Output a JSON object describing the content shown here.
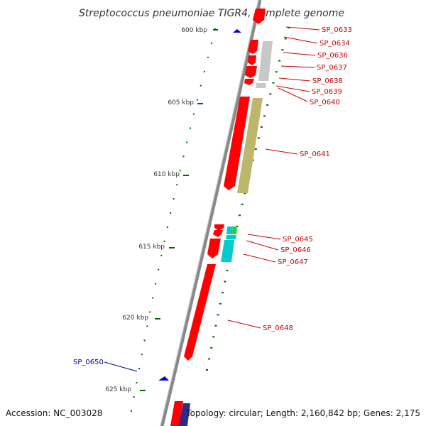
{
  "title": "Streptococcus pneumoniae TIGR4, complete genome",
  "footer": {
    "accession": "Accession: NC_003028",
    "topology": "Topology: circular; Length: 2,160,842 bp; Genes: 2,175"
  },
  "colors": {
    "backbone": "#888888",
    "forward_gene": "#ff0000",
    "reverse_gene": "#0000cc",
    "tick": "#006600",
    "forward_label": "#cc0000",
    "reverse_label": "#0000aa",
    "track_grey": "#c8c8c8",
    "track_olive": "#bdb76b",
    "track_cyan": "#00cccc",
    "track_green": "#33cc33",
    "track_navy": "#2b2b8a"
  },
  "scale": {
    "unit": "kbp",
    "ticks": [
      {
        "kbp": 600,
        "label": "600 kbp"
      },
      {
        "kbp": 605,
        "label": "605 kbp"
      },
      {
        "kbp": 610,
        "label": "610 kbp"
      },
      {
        "kbp": 615,
        "label": "615 kbp"
      },
      {
        "kbp": 620,
        "label": "620 kbp"
      },
      {
        "kbp": 625,
        "label": "625 kbp"
      }
    ]
  },
  "genes": [
    {
      "name": "SP_0633",
      "strand": "+"
    },
    {
      "name": "SP_0634",
      "strand": "+"
    },
    {
      "name": "SP_0636",
      "strand": "+"
    },
    {
      "name": "SP_0637",
      "strand": "+"
    },
    {
      "name": "SP_0638",
      "strand": "+"
    },
    {
      "name": "SP_0639",
      "strand": "+"
    },
    {
      "name": "SP_0640",
      "strand": "+"
    },
    {
      "name": "SP_0641",
      "strand": "+"
    },
    {
      "name": "SP_0645",
      "strand": "+"
    },
    {
      "name": "SP_0646",
      "strand": "+"
    },
    {
      "name": "SP_0647",
      "strand": "+"
    },
    {
      "name": "SP_0648",
      "strand": "+"
    },
    {
      "name": "SP_0650",
      "strand": "-"
    }
  ]
}
